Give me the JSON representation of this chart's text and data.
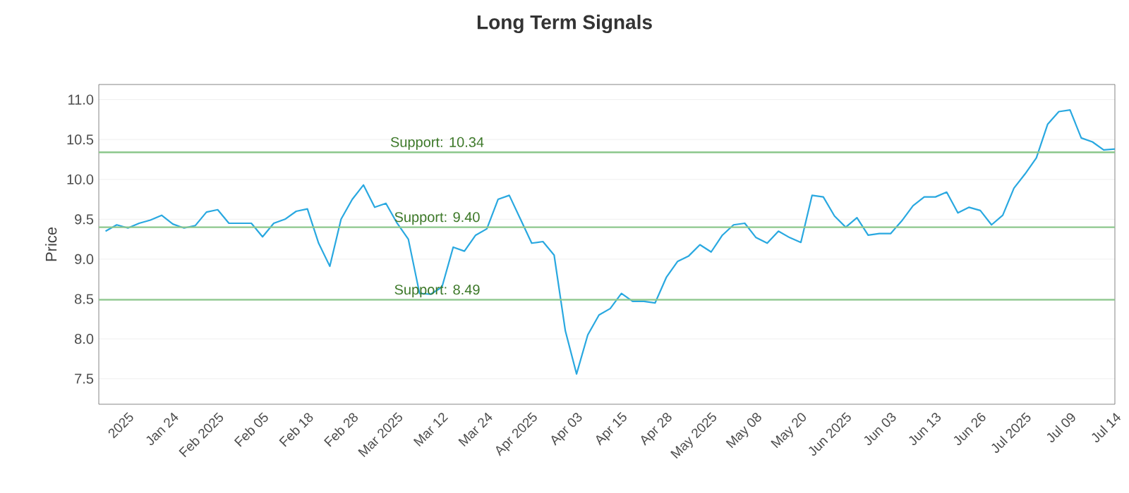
{
  "chart_data": {
    "type": "line",
    "title": "Long Term Signals",
    "ylabel": "Price",
    "categories": [
      null,
      null,
      "2025",
      null,
      null,
      null,
      "Jan 24",
      null,
      null,
      null,
      "Feb 2025",
      null,
      null,
      null,
      "Feb 05",
      null,
      null,
      null,
      "Feb 18",
      null,
      null,
      null,
      "Feb 28",
      null,
      null,
      null,
      "Mar 2025",
      null,
      null,
      null,
      "Mar 12",
      null,
      null,
      null,
      "Mar 24",
      null,
      null,
      null,
      "Apr 2025",
      null,
      null,
      null,
      "Apr 03",
      null,
      null,
      null,
      "Apr 15",
      null,
      null,
      null,
      "Apr 28",
      null,
      null,
      null,
      "May 2025",
      null,
      null,
      null,
      "May 08",
      null,
      null,
      null,
      "May 20",
      null,
      null,
      null,
      "Jun 2025",
      null,
      null,
      null,
      "Jun 03",
      null,
      null,
      null,
      "Jun 13",
      null,
      null,
      null,
      "Jun 26",
      null,
      null,
      null,
      "Jul 2025",
      null,
      null,
      null,
      "Jul 09",
      null,
      null,
      null,
      "Jul 14"
    ],
    "series": [
      {
        "color": "#29a8e0",
        "values": [
          9.35,
          9.43,
          9.39,
          9.45,
          9.49,
          9.55,
          9.44,
          9.39,
          9.42,
          9.59,
          9.62,
          9.45,
          9.45,
          9.45,
          9.28,
          9.45,
          9.5,
          9.6,
          9.63,
          9.2,
          8.91,
          9.5,
          9.75,
          9.93,
          9.65,
          9.7,
          9.45,
          9.25,
          8.57,
          8.56,
          8.65,
          9.15,
          9.1,
          9.3,
          9.38,
          9.75,
          9.8,
          9.5,
          9.2,
          9.22,
          9.05,
          8.1,
          7.56,
          8.05,
          8.3,
          8.38,
          8.57,
          8.47,
          8.47,
          8.45,
          8.77,
          8.97,
          9.04,
          9.18,
          9.09,
          9.3,
          9.43,
          9.45,
          9.27,
          9.2,
          9.35,
          9.27,
          9.21,
          9.8,
          9.78,
          9.54,
          9.4,
          9.52,
          9.3,
          9.32,
          9.32,
          9.48,
          9.67,
          9.78,
          9.78,
          9.84,
          9.58,
          9.65,
          9.61,
          9.43,
          9.55,
          9.89,
          10.07,
          10.27,
          10.69,
          10.85,
          10.87,
          10.52,
          10.47,
          10.37,
          10.38
        ]
      }
    ],
    "ylim": [
      7.18,
      11.19
    ],
    "yticks": [
      {
        "value": 7.5,
        "label": "7.5"
      },
      {
        "value": 8,
        "label": "8.0"
      },
      {
        "value": 8.5,
        "label": "8.5"
      },
      {
        "value": 9,
        "label": "9.0"
      },
      {
        "value": 9.5,
        "label": "9.5"
      },
      {
        "value": 10,
        "label": "10.0"
      },
      {
        "value": 10.5,
        "label": "10.5"
      },
      {
        "value": 11,
        "label": "11.0"
      }
    ],
    "grid": "y",
    "ref_lines": [
      {
        "axis": "y",
        "value": 10.34,
        "label": "Support: 10.34",
        "color": "#8cc78c"
      },
      {
        "axis": "y",
        "value": 9.4,
        "label": "Support: 9.40",
        "color": "#8cc78c"
      },
      {
        "axis": "y",
        "value": 8.49,
        "label": "Support: 8.49",
        "color": "#8cc78c"
      }
    ]
  }
}
